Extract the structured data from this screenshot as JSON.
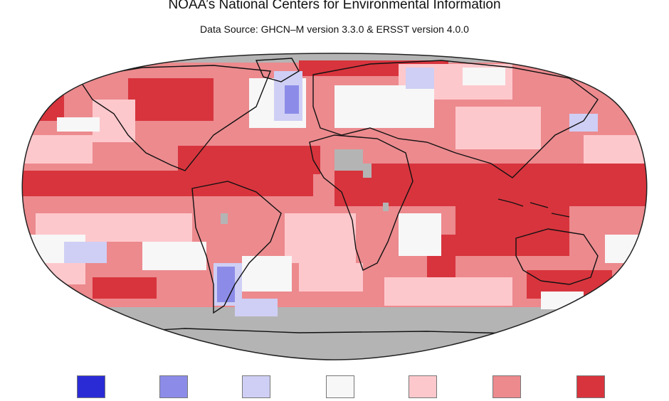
{
  "header": {
    "title": "NOAA’s National Centers for Environmental Information",
    "subtitle": "Data Source: GHCN–M version 3.3.0 & ERSST version 4.0.0"
  },
  "colors": {
    "no_data": "#b4b4b4",
    "land_outline": "#111111"
  },
  "legend": {
    "swatches": [
      {
        "name": "record-coldest",
        "color": "#2b2bd6"
      },
      {
        "name": "much-cooler-than-average",
        "color": "#8c8ce8"
      },
      {
        "name": "cooler-than-average",
        "color": "#cfcff5"
      },
      {
        "name": "near-average",
        "color": "#f7f7f7"
      },
      {
        "name": "warmer-than-average",
        "color": "#fdc8cc"
      },
      {
        "name": "much-warmer-than-average",
        "color": "#ec8a8e"
      },
      {
        "name": "record-warmest",
        "color": "#d8343d"
      }
    ]
  }
}
